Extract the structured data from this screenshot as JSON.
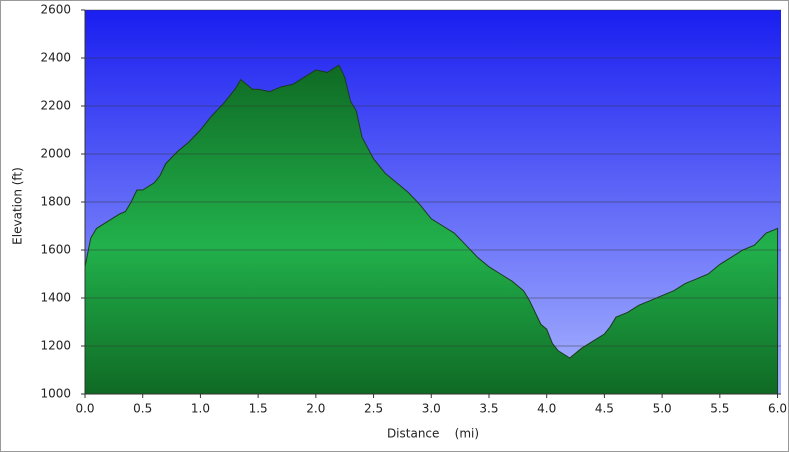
{
  "chart_data": {
    "type": "area",
    "x_label": "Distance    (mi)",
    "y_label": "Elevation (ft)",
    "color": "#22b14c",
    "x": [
      0,
      0.05,
      0.1,
      0.2,
      0.3,
      0.35,
      0.4,
      0.45,
      0.5,
      0.6,
      0.65,
      0.7,
      0.8,
      0.9,
      1.0,
      1.1,
      1.2,
      1.3,
      1.35,
      1.4,
      1.45,
      1.5,
      1.6,
      1.7,
      1.8,
      1.9,
      2.0,
      2.1,
      2.2,
      2.25,
      2.3,
      2.35,
      2.4,
      2.5,
      2.6,
      2.7,
      2.8,
      2.9,
      3.0,
      3.1,
      3.2,
      3.3,
      3.4,
      3.5,
      3.6,
      3.7,
      3.8,
      3.85,
      3.9,
      3.95,
      4.0,
      4.05,
      4.1,
      4.2,
      4.3,
      4.4,
      4.5,
      4.55,
      4.6,
      4.7,
      4.8,
      4.9,
      5.0,
      5.1,
      5.2,
      5.3,
      5.4,
      5.5,
      5.6,
      5.7,
      5.8,
      5.9,
      5.95,
      6.0
    ],
    "y": [
      1530,
      1650,
      1690,
      1720,
      1750,
      1760,
      1800,
      1850,
      1850,
      1880,
      1910,
      1960,
      2010,
      2050,
      2100,
      2160,
      2210,
      2270,
      2310,
      2290,
      2270,
      2270,
      2260,
      2280,
      2290,
      2320,
      2350,
      2340,
      2370,
      2320,
      2220,
      2180,
      2070,
      1980,
      1920,
      1880,
      1840,
      1790,
      1730,
      1700,
      1670,
      1620,
      1570,
      1530,
      1500,
      1470,
      1430,
      1390,
      1340,
      1290,
      1270,
      1210,
      1180,
      1150,
      1190,
      1220,
      1250,
      1280,
      1320,
      1340,
      1370,
      1390,
      1410,
      1430,
      1460,
      1480,
      1500,
      1540,
      1570,
      1600,
      1620,
      1670,
      1680,
      1690
    ],
    "xlim": [
      0,
      6.03
    ],
    "ylim": [
      1000,
      2600
    ],
    "xticks": [
      {
        "value": 0,
        "label": "0.0"
      },
      0.5,
      {
        "value": 1,
        "label": "1.0"
      },
      1.5,
      {
        "value": 2,
        "label": "2.0"
      },
      2.5,
      {
        "value": 3,
        "label": "3.0"
      },
      3.5,
      {
        "value": 4,
        "label": "4.0"
      },
      4.5,
      {
        "value": 5,
        "label": "5.0"
      },
      5.5,
      {
        "value": 6,
        "label": "6.0"
      }
    ],
    "yticks": [
      1000,
      1200,
      1400,
      1600,
      1800,
      2000,
      2200,
      2400,
      2600
    ],
    "grid": true
  }
}
